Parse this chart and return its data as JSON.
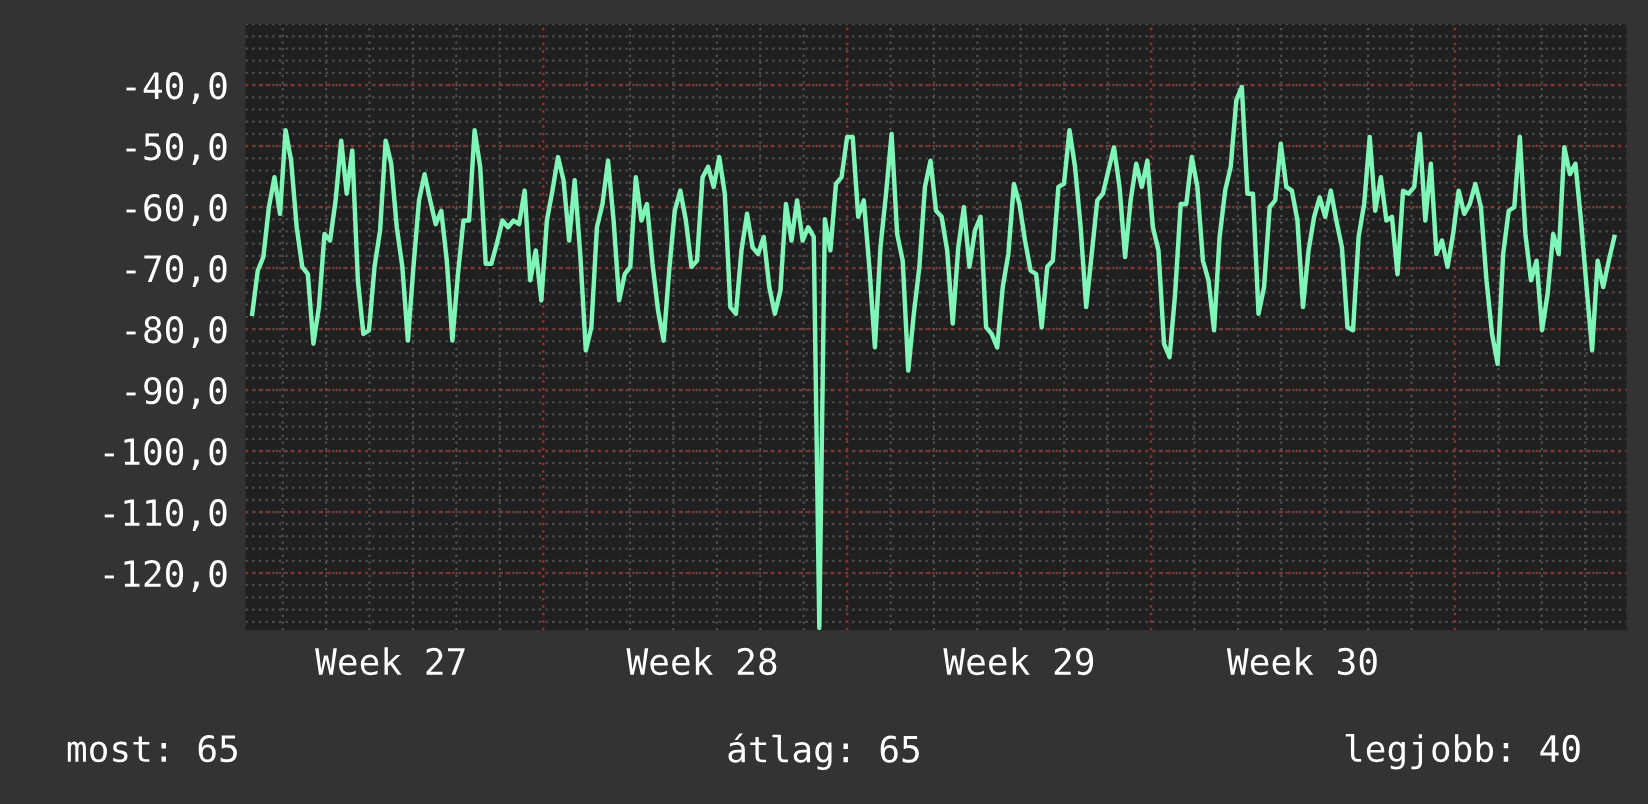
{
  "chart_data": {
    "type": "line",
    "annotations": [
      "most: 65",
      "átlag: 65",
      "legjobb: 40"
    ],
    "categories": [
      null,
      null,
      null,
      null,
      null,
      null,
      null,
      null,
      null,
      null,
      null,
      null,
      null,
      null,
      null,
      null,
      null,
      null,
      null,
      null,
      null,
      null,
      null,
      null,
      null,
      "Week 27",
      null,
      null,
      null,
      null,
      null,
      null,
      null,
      null,
      null,
      null,
      null,
      null,
      null,
      null,
      null,
      null,
      null,
      null,
      null,
      null,
      null,
      null,
      null,
      null,
      null,
      null,
      null,
      null,
      null,
      null,
      null,
      null,
      null,
      null,
      null,
      null,
      null,
      null,
      null,
      null,
      null,
      null,
      null,
      null,
      null,
      null,
      null,
      null,
      null,
      null,
      null,
      null,
      null,
      null,
      null,
      "Week 28",
      null,
      null,
      null,
      null,
      null,
      null,
      null,
      null,
      null,
      null,
      null,
      null,
      null,
      null,
      null,
      null,
      null,
      null,
      null,
      null,
      null,
      null,
      null,
      null,
      null,
      null,
      null,
      null,
      null,
      null,
      null,
      null,
      null,
      null,
      null,
      null,
      null,
      null,
      null,
      null,
      null,
      null,
      null,
      null,
      null,
      null,
      null,
      null,
      null,
      null,
      null,
      null,
      null,
      null,
      null,
      null,
      "Week 29",
      null,
      null,
      null,
      null,
      null,
      null,
      null,
      null,
      null,
      null,
      null,
      null,
      null,
      null,
      null,
      null,
      null,
      null,
      null,
      null,
      null,
      null,
      null,
      null,
      null,
      null,
      null,
      null,
      null,
      null,
      null,
      null,
      null,
      null,
      null,
      null,
      null,
      null,
      null,
      null,
      null,
      null,
      null,
      null,
      null,
      null,
      null,
      null,
      null,
      null,
      "Week 30",
      null,
      null,
      null,
      null,
      null,
      null,
      null,
      null,
      null,
      null,
      null,
      null,
      null,
      null,
      null,
      null,
      null,
      null,
      null,
      null,
      null,
      null,
      null,
      null,
      null,
      null,
      null,
      null,
      null,
      null,
      null,
      null,
      null,
      null,
      null,
      null,
      null,
      null,
      null,
      null,
      null,
      null,
      null,
      null,
      null,
      null,
      null,
      null,
      null,
      null,
      null,
      null,
      null,
      null,
      null,
      null
    ],
    "ylim": [
      -129.4,
      -30
    ],
    "yticks": [
      {
        "value": -40,
        "label": "-40,0"
      },
      {
        "value": -50,
        "label": "-50,0"
      },
      {
        "value": -60,
        "label": "-60,0"
      },
      {
        "value": -70,
        "label": "-70,0"
      },
      {
        "value": -80,
        "label": "-80,0"
      },
      {
        "value": -90,
        "label": "-90,0"
      },
      {
        "value": -100,
        "label": "-100,0"
      },
      {
        "value": -110,
        "label": "-110,0"
      },
      {
        "value": -120,
        "label": "-120,0"
      }
    ],
    "grid": true,
    "series": [
      {
        "color": "#7ff5b8",
        "values": [
          -77.5,
          -70.4,
          -68.2,
          -60,
          -55.1,
          -61.1,
          -47.4,
          -52.4,
          -63.3,
          -69.8,
          -71,
          -82.4,
          -76.4,
          -64.4,
          -65.5,
          -58.9,
          -49.1,
          -57.8,
          -50.7,
          -72,
          -80.8,
          -80.2,
          -69.8,
          -63.8,
          -49.1,
          -52.9,
          -63.3,
          -69.8,
          -81.9,
          -69.8,
          -58.9,
          -54.6,
          -58.9,
          -62.8,
          -60.6,
          -68.8,
          -81.9,
          -71,
          -62.2,
          -62.2,
          -47.4,
          -53.4,
          -69.3,
          -69.3,
          -66,
          -62.2,
          -63.3,
          -62.2,
          -62.8,
          -57.3,
          -72,
          -67.1,
          -75.3,
          -62.2,
          -57.3,
          -51.8,
          -55.6,
          -65.5,
          -55.6,
          -67.7,
          -83.5,
          -79.7,
          -63.3,
          -59.5,
          -52.4,
          -62.2,
          -75.3,
          -71,
          -69.8,
          -55.1,
          -62.2,
          -59.5,
          -69.3,
          -77,
          -81.9,
          -70.4,
          -60.6,
          -57.3,
          -62.2,
          -69.8,
          -68.8,
          -55.1,
          -53.4,
          -56.7,
          -51.8,
          -57.8,
          -76.4,
          -77.5,
          -67.1,
          -61.1,
          -66.6,
          -67.7,
          -64.9,
          -73.1,
          -77.5,
          -73.7,
          -59.5,
          -65.5,
          -58.9,
          -65.5,
          -63.3,
          -64.9,
          -129,
          -62,
          -67.1,
          -56.2,
          -55.1,
          -48.5,
          -48.5,
          -61.6,
          -58.9,
          -69.8,
          -83,
          -66.6,
          -57.8,
          -48,
          -64.4,
          -68.8,
          -86.8,
          -77.5,
          -69.8,
          -56.7,
          -52.4,
          -60.6,
          -61.6,
          -67.1,
          -79.1,
          -66.6,
          -60,
          -69.8,
          -63.8,
          -61.6,
          -79.7,
          -80.8,
          -83,
          -73.1,
          -67.7,
          -56.2,
          -59.5,
          -65.5,
          -70.4,
          -71,
          -79.7,
          -69.8,
          -68.8,
          -56.7,
          -56.2,
          -47.4,
          -53.4,
          -63.3,
          -76.4,
          -67.7,
          -58.9,
          -57.8,
          -54,
          -50.2,
          -56.7,
          -68.2,
          -58.9,
          -52.9,
          -56.7,
          -52.4,
          -63.3,
          -67.1,
          -82.4,
          -84.6,
          -74.2,
          -59.5,
          -59.5,
          -51.8,
          -56.7,
          -68.8,
          -72,
          -80.2,
          -64.9,
          -57.3,
          -53.4,
          -42.5,
          -40.3,
          -57.8,
          -57.8,
          -77.5,
          -73.1,
          -60,
          -58.9,
          -49.6,
          -56.7,
          -57.3,
          -62.2,
          -76.4,
          -67.1,
          -61.6,
          -58.4,
          -61.6,
          -57.3,
          -62.2,
          -66.6,
          -79.7,
          -80.2,
          -64.9,
          -59.5,
          -48.5,
          -60.6,
          -55.1,
          -62.2,
          -61.6,
          -71,
          -57.3,
          -57.8,
          -56.7,
          -48,
          -62.2,
          -52.9,
          -67.7,
          -65.5,
          -69.8,
          -64.4,
          -57.3,
          -61.1,
          -59.5,
          -56.2,
          -60,
          -72,
          -80.8,
          -85.7,
          -67.7,
          -60.6,
          -60,
          -48.5,
          -64.4,
          -72,
          -68.8,
          -80.2,
          -74.2,
          -64.4,
          -67.7,
          -50.2,
          -54.6,
          -52.9,
          -62.2,
          -73.1,
          -83.5,
          -68.8,
          -73.1,
          -68.8,
          -64.9
        ]
      }
    ]
  }
}
